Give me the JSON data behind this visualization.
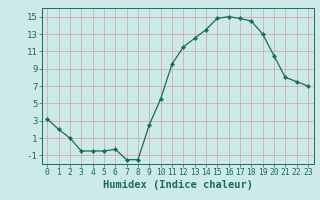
{
  "x": [
    0,
    1,
    2,
    3,
    4,
    5,
    6,
    7,
    8,
    9,
    10,
    11,
    12,
    13,
    14,
    15,
    16,
    17,
    18,
    19,
    20,
    21,
    22,
    23
  ],
  "y": [
    3.2,
    2.0,
    1.0,
    -0.5,
    -0.5,
    -0.5,
    -0.3,
    -1.5,
    -1.5,
    2.5,
    5.5,
    9.5,
    11.5,
    12.5,
    13.5,
    14.8,
    15.0,
    14.8,
    14.5,
    13.0,
    10.5,
    8.0,
    7.5,
    7.0
  ],
  "title": "",
  "xlabel": "Humidex (Indice chaleur)",
  "ylabel": "",
  "xlim": [
    -0.5,
    23.5
  ],
  "ylim": [
    -2,
    16
  ],
  "yticks": [
    -1,
    1,
    3,
    5,
    7,
    9,
    11,
    13,
    15
  ],
  "xtick_labels": [
    "0",
    "1",
    "2",
    "3",
    "4",
    "5",
    "6",
    "7",
    "8",
    "9",
    "10",
    "11",
    "12",
    "13",
    "14",
    "15",
    "16",
    "17",
    "18",
    "19",
    "20",
    "21",
    "22",
    "23"
  ],
  "bg_color": "#cceae8",
  "grid_color": "#d4a0a0",
  "line_color": "#1a6b5a",
  "marker_color": "#1a6b5a",
  "xlabel_fontsize": 7.5,
  "ytick_fontsize": 6.5,
  "xtick_fontsize": 5.8
}
